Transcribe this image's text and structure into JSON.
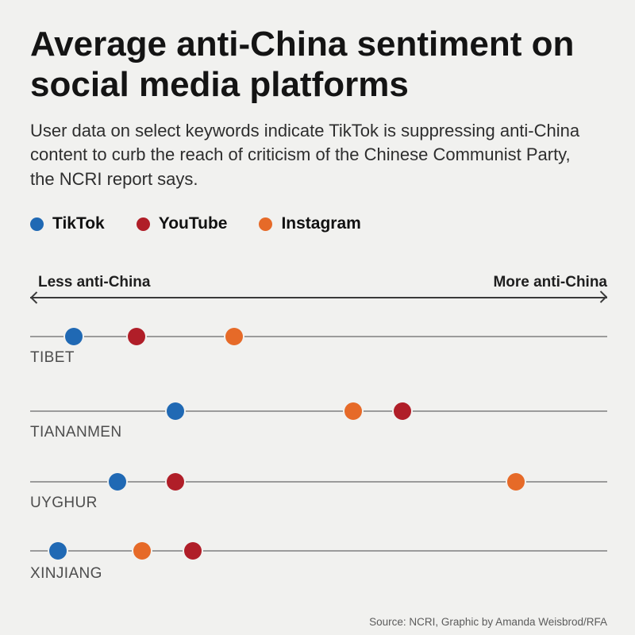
{
  "header": {
    "title": "Average anti-China sentiment on social media platforms",
    "subtitle": "User data on select keywords indicate TikTok is suppressing anti-China content to curb the reach of criticism of the Chinese Communist Party, the NCRI report says."
  },
  "chart_data": {
    "type": "scatter",
    "subtype": "dot-plot",
    "title": "Average anti-China sentiment on social media platforms",
    "axis": {
      "left_label": "Less anti-China",
      "right_label": "More anti-China",
      "range": [
        0,
        1
      ],
      "note": "values are relative positions along the sentiment axis, 0 = less anti-China, 1 = more anti-China"
    },
    "legend": [
      {
        "name": "TikTok",
        "color": "#2069b4"
      },
      {
        "name": "YouTube",
        "color": "#b01e28"
      },
      {
        "name": "Instagram",
        "color": "#e66a28"
      }
    ],
    "rows": [
      {
        "keyword": "TIBET",
        "values": {
          "TikTok": 0.076,
          "YouTube": 0.184,
          "Instagram": 0.354
        }
      },
      {
        "keyword": "TIANANMEN",
        "values": {
          "TikTok": 0.252,
          "YouTube": 0.645,
          "Instagram": 0.56
        }
      },
      {
        "keyword": "UYGHUR",
        "values": {
          "TikTok": 0.151,
          "YouTube": 0.252,
          "Instagram": 0.842
        }
      },
      {
        "keyword": "XINJIANG",
        "values": {
          "TikTok": 0.048,
          "YouTube": 0.282,
          "Instagram": 0.194
        }
      }
    ]
  },
  "footer": {
    "source": "Source: NCRI, Graphic by Amanda Weisbrod/RFA"
  }
}
